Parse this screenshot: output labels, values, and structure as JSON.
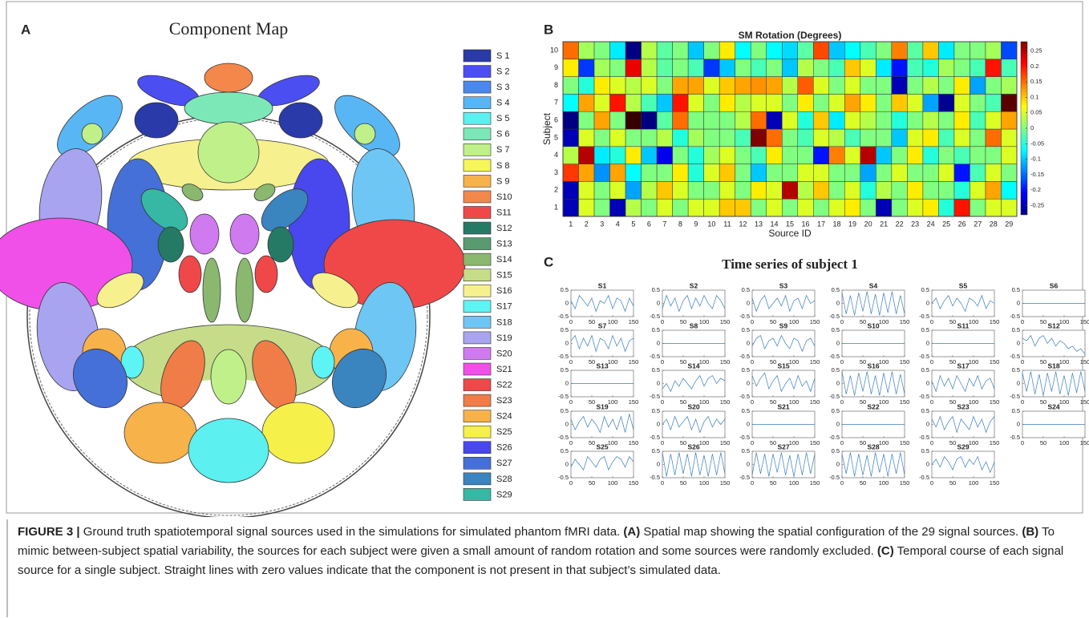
{
  "chart_data": [
    {
      "type": "map",
      "panel": "A",
      "title": "Component Map",
      "legend": [
        {
          "name": "S 1",
          "color": "#2a3aa8"
        },
        {
          "name": "S 2",
          "color": "#4b4ef0"
        },
        {
          "name": "S 3",
          "color": "#4a88f0"
        },
        {
          "name": "S 4",
          "color": "#58b6f4"
        },
        {
          "name": "S 5",
          "color": "#5cf0f0"
        },
        {
          "name": "S 6",
          "color": "#7ce8b8"
        },
        {
          "name": "S 7",
          "color": "#c0f08a"
        },
        {
          "name": "S 8",
          "color": "#f6f65a"
        },
        {
          "name": "S 9",
          "color": "#f8b24a"
        },
        {
          "name": "S10",
          "color": "#f4884a"
        },
        {
          "name": "S11",
          "color": "#f04848"
        },
        {
          "name": "S12",
          "color": "#257a66"
        },
        {
          "name": "S13",
          "color": "#5a9a70"
        },
        {
          "name": "S14",
          "color": "#8ab86e"
        },
        {
          "name": "S15",
          "color": "#c6dc88"
        },
        {
          "name": "S16",
          "color": "#f6f08e"
        },
        {
          "name": "S17",
          "color": "#5cf4f4"
        },
        {
          "name": "S18",
          "color": "#6ec6f4"
        },
        {
          "name": "S19",
          "color": "#a8a4f0"
        },
        {
          "name": "S20",
          "color": "#d07af0"
        },
        {
          "name": "S21",
          "color": "#f050e8"
        },
        {
          "name": "S22",
          "color": "#f04848"
        },
        {
          "name": "S23",
          "color": "#f07c48"
        },
        {
          "name": "S24",
          "color": "#f8b24a"
        },
        {
          "name": "S25",
          "color": "#f6f04a"
        },
        {
          "name": "S26",
          "color": "#4848ee"
        },
        {
          "name": "S27",
          "color": "#4470d8"
        },
        {
          "name": "S28",
          "color": "#3a84c0"
        },
        {
          "name": "S29",
          "color": "#36b8a4"
        }
      ]
    },
    {
      "type": "heatmap",
      "panel": "B",
      "title": "SM Rotation (Degrees)",
      "xlabel": "Source ID",
      "ylabel": "Subject",
      "x_categories": [
        1,
        2,
        3,
        4,
        5,
        6,
        7,
        8,
        9,
        10,
        11,
        12,
        13,
        14,
        15,
        16,
        17,
        18,
        19,
        20,
        21,
        22,
        23,
        24,
        25,
        26,
        27,
        28,
        29
      ],
      "y_categories": [
        1,
        2,
        3,
        4,
        5,
        6,
        7,
        8,
        9,
        10
      ],
      "colormap": "jet",
      "clim": [
        -0.28,
        0.28
      ],
      "cticks": [
        -0.25,
        -0.2,
        -0.15,
        -0.1,
        -0.05,
        0,
        0.05,
        0.1,
        0.15,
        0.2,
        0.25
      ],
      "z": [
        [
          -0.25,
          0.05,
          0,
          -0.25,
          0.03,
          0,
          0.05,
          0,
          0.05,
          0.05,
          0.1,
          0.1,
          0,
          0.05,
          0,
          0.05,
          0,
          0.05,
          0.08,
          0,
          -0.25,
          0,
          0.05,
          0.08,
          -0.05,
          0.2,
          0,
          0.05,
          0.05
        ],
        [
          -0.25,
          0.05,
          0,
          0.05,
          -0.12,
          0.03,
          0.1,
          0.05,
          0,
          0,
          0.05,
          0,
          0.08,
          0.05,
          0.25,
          0.03,
          0.1,
          0,
          0.05,
          -0.05,
          0.03,
          0,
          0.08,
          0,
          0,
          -0.05,
          0.05,
          0.12,
          -0.07
        ],
        [
          0.18,
          0.12,
          -0.13,
          0.12,
          -0.07,
          0,
          0,
          0.08,
          -0.05,
          0.05,
          0.1,
          0,
          -0.1,
          0,
          0,
          0.05,
          0.05,
          0,
          0,
          -0.12,
          0,
          0.05,
          0,
          0,
          0.05,
          -0.2,
          -0.03,
          0.05,
          0
        ],
        [
          0.03,
          0.25,
          -0.08,
          -0.05,
          0.08,
          -0.1,
          -0.22,
          0,
          -0.05,
          0.02,
          0.05,
          0,
          -0.03,
          0.08,
          0,
          0,
          -0.2,
          0.14,
          0.05,
          0.25,
          -0.1,
          0,
          0.08,
          -0.05,
          0,
          -0.03,
          0,
          0,
          0.05
        ],
        [
          -0.25,
          0.05,
          0,
          0.05,
          0,
          0,
          0.03,
          -0.05,
          0.02,
          0,
          0,
          -0.03,
          0.28,
          0.15,
          0,
          -0.03,
          0.05,
          0.03,
          -0.03,
          0,
          0,
          -0.1,
          0.05,
          0.08,
          -0.03,
          0.05,
          0,
          0.15,
          0.05
        ],
        [
          -0.28,
          0,
          0.12,
          0,
          0.32,
          -0.28,
          -0.02,
          0.15,
          0,
          0,
          0,
          0.03,
          0.15,
          -0.25,
          0.05,
          -0.05,
          0.1,
          -0.08,
          0.05,
          0.03,
          0,
          -0.05,
          0,
          0.03,
          0,
          0.08,
          -0.03,
          0.05,
          0.12
        ],
        [
          -0.07,
          0.12,
          0.05,
          0.2,
          0.03,
          -0.03,
          -0.1,
          0.2,
          0.05,
          0,
          0.08,
          0.03,
          0.05,
          0.05,
          0,
          0.08,
          0,
          0.05,
          0.12,
          0.08,
          0,
          0.1,
          0.05,
          -0.12,
          -0.27,
          0.05,
          0,
          -0.03,
          0.3
        ],
        [
          0,
          -0.05,
          0.08,
          0.05,
          0.03,
          0.05,
          0,
          0.12,
          0.12,
          0.05,
          0.1,
          0.12,
          0.13,
          0.12,
          0.03,
          0.16,
          0.05,
          0,
          0.05,
          0,
          0,
          -0.25,
          0,
          0.03,
          0,
          0.08,
          -0.12,
          0,
          0.02
        ],
        [
          0.08,
          -0.18,
          0.02,
          0,
          0.22,
          0.03,
          -0.02,
          0,
          -0.03,
          -0.18,
          -0.1,
          0,
          -0.03,
          0,
          -0.1,
          0.03,
          0,
          -0.03,
          0.1,
          0.05,
          -0.08,
          -0.2,
          -0.03,
          -0.05,
          0.02,
          0,
          -0.03,
          0.2,
          -0.03
        ],
        [
          0.15,
          0.02,
          0,
          -0.08,
          -0.28,
          0.03,
          -0.02,
          0,
          -0.1,
          0,
          0.08,
          -0.07,
          0,
          -0.07,
          -0.09,
          -0.02,
          0.17,
          -0.1,
          -0.07,
          -0.03,
          0,
          0.14,
          -0.02,
          0.1,
          -0.08,
          0,
          0,
          0.02,
          -0.17
        ]
      ]
    },
    {
      "type": "line",
      "panel": "C",
      "title": "Time series of subject 1",
      "color": "#3a7dbf",
      "x": [
        0,
        10,
        20,
        30,
        40,
        50,
        60,
        70,
        80,
        90,
        100,
        110,
        120,
        130,
        140,
        150
      ],
      "xlim": [
        0,
        150
      ],
      "xticks": [
        0,
        50,
        100,
        150
      ],
      "ylim": [
        -0.5,
        0.5
      ],
      "yticks": [
        -0.5,
        0,
        0.5
      ],
      "series": [
        {
          "name": "S1",
          "values": [
            0.1,
            -0.2,
            0.3,
            0.1,
            -0.1,
            0.2,
            -0.3,
            0.1,
            0,
            0.3,
            -0.2,
            0.2,
            0.1,
            -0.3,
            0.2,
            -0.1
          ]
        },
        {
          "name": "S2",
          "values": [
            -0.2,
            0.3,
            -0.1,
            0.2,
            -0.3,
            0.1,
            0.3,
            -0.2,
            0.2,
            -0.1,
            0.3,
            0,
            -0.2,
            0.3,
            0.1,
            -0.2
          ]
        },
        {
          "name": "S3",
          "values": [
            0.2,
            -0.3,
            0.1,
            0.3,
            -0.2,
            0,
            0.2,
            -0.1,
            0.3,
            -0.3,
            0.1,
            0.2,
            -0.2,
            0.3,
            0,
            0.1
          ]
        },
        {
          "name": "S4",
          "values": [
            0.4,
            -0.4,
            0.3,
            -0.45,
            0.4,
            -0.3,
            0.45,
            -0.4,
            0.35,
            -0.45,
            0.4,
            -0.35,
            0.45,
            -0.4,
            0.3,
            -0.4
          ]
        },
        {
          "name": "S5",
          "values": [
            0,
            0.2,
            -0.2,
            0.1,
            0.3,
            -0.1,
            0.2,
            0,
            -0.3,
            0.2,
            0.1,
            -0.1,
            0.3,
            -0.2,
            0.1,
            0
          ]
        },
        {
          "name": "S6",
          "values": [
            0,
            0,
            0,
            0,
            0,
            0,
            0,
            0,
            0,
            0,
            0,
            0,
            0,
            0,
            0,
            0
          ]
        },
        {
          "name": "S7",
          "values": [
            0.1,
            0.3,
            -0.2,
            0.2,
            -0.1,
            0.3,
            -0.3,
            0.2,
            0.1,
            -0.2,
            0.3,
            -0.1,
            0.2,
            -0.3,
            0.1,
            0.2
          ]
        },
        {
          "name": "S8",
          "values": [
            0,
            0,
            0,
            0,
            0,
            0,
            0,
            0,
            0,
            0,
            0,
            0,
            0,
            0,
            0,
            0
          ]
        },
        {
          "name": "S9",
          "values": [
            -0.1,
            0.2,
            0.3,
            -0.2,
            0.1,
            0.2,
            -0.1,
            0.3,
            0,
            -0.2,
            0.2,
            0.1,
            -0.3,
            0.1,
            0.2,
            -0.1
          ]
        },
        {
          "name": "S10",
          "values": [
            0,
            0,
            0,
            0,
            0,
            0,
            0,
            0,
            0,
            0,
            0,
            0,
            0,
            0,
            0,
            0
          ]
        },
        {
          "name": "S11",
          "values": [
            0,
            0,
            0,
            0,
            0,
            0,
            0,
            0,
            0,
            0,
            0,
            0,
            0,
            0,
            0,
            0
          ]
        },
        {
          "name": "S12",
          "values": [
            0.2,
            0.1,
            0.3,
            -0.1,
            0.2,
            0.3,
            0,
            0.2,
            -0.1,
            0.1,
            0,
            -0.2,
            -0.1,
            -0.3,
            -0.2,
            -0.4
          ]
        },
        {
          "name": "S13",
          "values": [
            0,
            0,
            0,
            0,
            0,
            0,
            0,
            0,
            0,
            0,
            0,
            0,
            0,
            0,
            0,
            0
          ]
        },
        {
          "name": "S14",
          "values": [
            -0.2,
            0,
            -0.3,
            0.1,
            -0.1,
            0.2,
            0,
            -0.2,
            0.1,
            0.3,
            -0.1,
            0.2,
            0.3,
            0,
            0.2,
            0.1
          ]
        },
        {
          "name": "S15",
          "values": [
            0.3,
            -0.1,
            0.2,
            0.4,
            -0.2,
            0.1,
            0.3,
            -0.3,
            0,
            0.2,
            -0.2,
            0.3,
            -0.1,
            0.1,
            -0.3,
            0.2
          ]
        },
        {
          "name": "S16",
          "values": [
            0.45,
            -0.4,
            0.3,
            -0.45,
            0.4,
            -0.3,
            0.45,
            -0.4,
            0.3,
            -0.45,
            0.4,
            -0.35,
            0.45,
            -0.4,
            0.35,
            -0.4
          ]
        },
        {
          "name": "S17",
          "values": [
            0.1,
            -0.3,
            0.3,
            -0.1,
            0.2,
            -0.2,
            0.3,
            0,
            -0.3,
            0.2,
            -0.1,
            0.3,
            -0.2,
            0.1,
            0.2,
            -0.2
          ]
        },
        {
          "name": "S18",
          "values": [
            0.4,
            -0.3,
            0.45,
            -0.4,
            0.35,
            -0.45,
            0.4,
            -0.3,
            0.45,
            -0.4,
            0.3,
            -0.45,
            0.4,
            -0.35,
            0.45,
            -0.3
          ]
        },
        {
          "name": "S19",
          "values": [
            0.2,
            -0.2,
            0.1,
            0.3,
            -0.1,
            0.2,
            0,
            -0.3,
            0.3,
            -0.1,
            0.2,
            -0.2,
            0.3,
            -0.3,
            0.4,
            -0.2
          ]
        },
        {
          "name": "S20",
          "values": [
            0,
            0.2,
            -0.2,
            0.3,
            -0.1,
            0.1,
            0.3,
            -0.2,
            0.2,
            -0.3,
            0.1,
            0.3,
            -0.1,
            0.2,
            0,
            0.2
          ]
        },
        {
          "name": "S21",
          "values": [
            0,
            0,
            0,
            0,
            0,
            0,
            0,
            0,
            0,
            0,
            0,
            0,
            0,
            0,
            0,
            0
          ]
        },
        {
          "name": "S22",
          "values": [
            0,
            0,
            0,
            0,
            0,
            0,
            0,
            0,
            0,
            0,
            0,
            0,
            0,
            0,
            0,
            0
          ]
        },
        {
          "name": "S23",
          "values": [
            0.2,
            -0.1,
            0.3,
            -0.2,
            0.1,
            0.3,
            -0.3,
            0.2,
            0,
            -0.2,
            0.3,
            -0.1,
            0.2,
            -0.3,
            0.1,
            0.3
          ]
        },
        {
          "name": "S24",
          "values": [
            0,
            0,
            0,
            0,
            0,
            0,
            0,
            0,
            0,
            0,
            0,
            0,
            0,
            0,
            0,
            0
          ]
        },
        {
          "name": "S25",
          "values": [
            -0.1,
            0.2,
            0,
            -0.2,
            0.3,
            0.1,
            -0.1,
            0.2,
            0.3,
            -0.2,
            0.1,
            0.3,
            0.2,
            -0.1,
            0.3,
            0.1
          ]
        },
        {
          "name": "S26",
          "values": [
            0.45,
            -0.45,
            0.4,
            -0.4,
            0.45,
            -0.35,
            0.4,
            -0.45,
            0.45,
            -0.4,
            0.35,
            -0.45,
            0.4,
            -0.4,
            0.45,
            -0.35
          ]
        },
        {
          "name": "S27",
          "values": [
            -0.4,
            0.45,
            -0.35,
            0.4,
            -0.45,
            0.4,
            -0.3,
            0.45,
            -0.4,
            0.35,
            -0.45,
            0.4,
            -0.4,
            0.45,
            -0.35,
            0.4
          ]
        },
        {
          "name": "S28",
          "values": [
            0.4,
            -0.35,
            0.45,
            -0.45,
            0.4,
            -0.4,
            0.35,
            -0.45,
            0.45,
            -0.3,
            0.4,
            -0.45,
            0.4,
            -0.35,
            0.45,
            -0.4
          ]
        },
        {
          "name": "S29",
          "values": [
            0,
            0.2,
            -0.1,
            0.3,
            0.1,
            -0.2,
            0.2,
            0.3,
            -0.1,
            0.2,
            0,
            0.3,
            -0.2,
            0.1,
            -0.3,
            0.1
          ]
        }
      ]
    }
  ],
  "caption": [
    {
      "text": "FIGURE 3 |",
      "bold": true
    },
    {
      "text": " Ground truth spatiotemporal signal sources used in the simulations for simulated phantom fMRI data. ",
      "bold": false
    },
    {
      "text": "(A)",
      "bold": true
    },
    {
      "text": " Spatial map showing the spatial configuration of the 29 signal sources. ",
      "bold": false
    },
    {
      "text": "(B)",
      "bold": true
    },
    {
      "text": " To mimic between-subject spatial variability, the sources for each subject were given a small amount of random rotation and some sources were randomly excluded. ",
      "bold": false
    },
    {
      "text": "(C)",
      "bold": true
    },
    {
      "text": " Temporal course of each signal source for a single subject. Straight lines with zero values indicate that the component is not present in that subject’s simulated data.",
      "bold": false
    }
  ]
}
